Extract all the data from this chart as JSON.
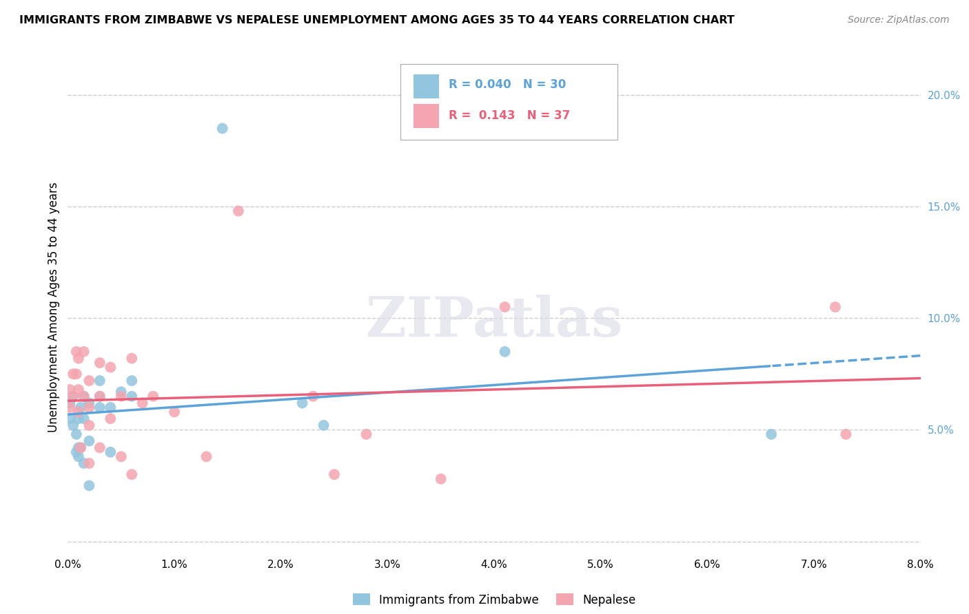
{
  "title": "IMMIGRANTS FROM ZIMBABWE VS NEPALESE UNEMPLOYMENT AMONG AGES 35 TO 44 YEARS CORRELATION CHART",
  "source": "Source: ZipAtlas.com",
  "ylabel": "Unemployment Among Ages 35 to 44 years",
  "legend_label1": "Immigrants from Zimbabwe",
  "legend_label2": "Nepalese",
  "R1": "0.040",
  "N1": "30",
  "R2": "0.143",
  "N2": "37",
  "color1": "#92C5DE",
  "color2": "#F4A5AF",
  "trendline1_color": "#5BA3D9",
  "trendline2_color": "#E8607A",
  "xlim": [
    0.0,
    0.08
  ],
  "ylim": [
    -0.005,
    0.215
  ],
  "xticks": [
    0.0,
    0.01,
    0.02,
    0.03,
    0.04,
    0.05,
    0.06,
    0.07,
    0.08
  ],
  "xtick_labels": [
    "0.0%",
    "1.0%",
    "2.0%",
    "3.0%",
    "4.0%",
    "5.0%",
    "6.0%",
    "7.0%",
    "8.0%"
  ],
  "yticks_right": [
    0.05,
    0.1,
    0.15,
    0.2
  ],
  "ytick_labels_right": [
    "5.0%",
    "10.0%",
    "15.0%",
    "20.0%"
  ],
  "scatter1_x": [
    0.0002,
    0.0002,
    0.0005,
    0.0005,
    0.0008,
    0.0008,
    0.001,
    0.001,
    0.001,
    0.0012,
    0.0012,
    0.0015,
    0.0015,
    0.0015,
    0.002,
    0.002,
    0.002,
    0.003,
    0.003,
    0.003,
    0.004,
    0.004,
    0.005,
    0.006,
    0.006,
    0.0145,
    0.022,
    0.024,
    0.041,
    0.066
  ],
  "scatter1_y": [
    0.062,
    0.055,
    0.065,
    0.052,
    0.048,
    0.04,
    0.042,
    0.038,
    0.055,
    0.06,
    0.042,
    0.065,
    0.055,
    0.035,
    0.062,
    0.045,
    0.025,
    0.072,
    0.06,
    0.065,
    0.06,
    0.04,
    0.067,
    0.072,
    0.065,
    0.185,
    0.062,
    0.052,
    0.085,
    0.048
  ],
  "scatter2_x": [
    0.0002,
    0.0002,
    0.0005,
    0.0005,
    0.0008,
    0.0008,
    0.001,
    0.001,
    0.001,
    0.0012,
    0.0015,
    0.0015,
    0.002,
    0.002,
    0.002,
    0.002,
    0.003,
    0.003,
    0.003,
    0.004,
    0.004,
    0.005,
    0.005,
    0.006,
    0.006,
    0.007,
    0.008,
    0.01,
    0.013,
    0.016,
    0.023,
    0.025,
    0.028,
    0.035,
    0.041,
    0.073,
    0.072
  ],
  "scatter2_y": [
    0.068,
    0.06,
    0.075,
    0.065,
    0.085,
    0.075,
    0.082,
    0.068,
    0.058,
    0.042,
    0.085,
    0.065,
    0.072,
    0.06,
    0.052,
    0.035,
    0.08,
    0.065,
    0.042,
    0.078,
    0.055,
    0.065,
    0.038,
    0.082,
    0.03,
    0.062,
    0.065,
    0.058,
    0.038,
    0.148,
    0.065,
    0.03,
    0.048,
    0.028,
    0.105,
    0.048,
    0.105
  ],
  "watermark_text": "ZIPatlas",
  "background_color": "#FFFFFF",
  "grid_color": "#CCCCCC"
}
